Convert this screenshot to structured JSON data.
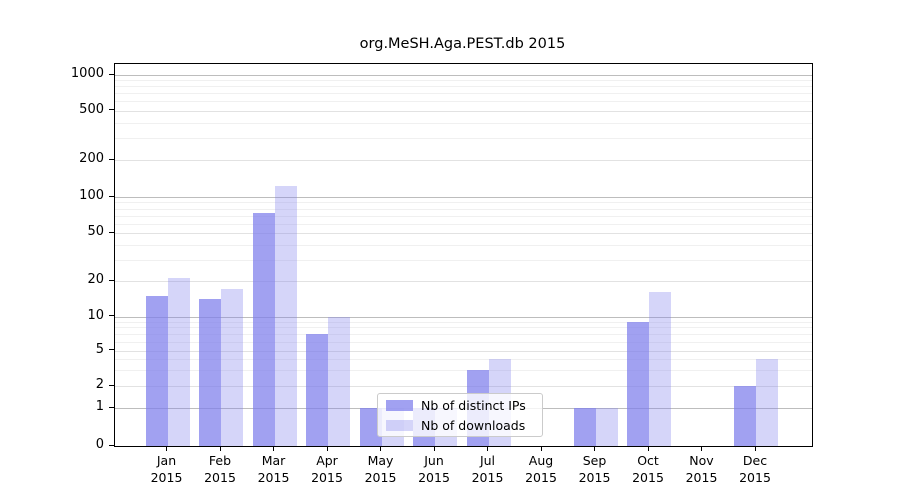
{
  "chart_data": {
    "type": "bar",
    "title": "org.MeSH.Aga.PEST.db 2015",
    "categories": [
      "Jan 2015",
      "Feb 2015",
      "Mar 2015",
      "Apr 2015",
      "May 2015",
      "Jun 2015",
      "Jul 2015",
      "Aug 2015",
      "Sep 2015",
      "Oct 2015",
      "Nov 2015",
      "Dec 2015"
    ],
    "series": [
      {
        "name": "Nb of distinct IPs",
        "color": "rgba(125,125,235,0.72)",
        "values": [
          15,
          14,
          73,
          7,
          1,
          1,
          3,
          0,
          1,
          9,
          0,
          2
        ]
      },
      {
        "name": "Nb of downloads",
        "color": "rgba(125,125,235,0.32)",
        "values": [
          21,
          17,
          123,
          10,
          1,
          1,
          4,
          0,
          1,
          16,
          0,
          4
        ]
      }
    ],
    "yscale": "symlog",
    "yticks": [
      0,
      1,
      2,
      5,
      10,
      20,
      50,
      100,
      200,
      500,
      1000
    ],
    "ylim": [
      0,
      1200
    ],
    "grid": true,
    "legend_position": "inside lower-center-left"
  }
}
